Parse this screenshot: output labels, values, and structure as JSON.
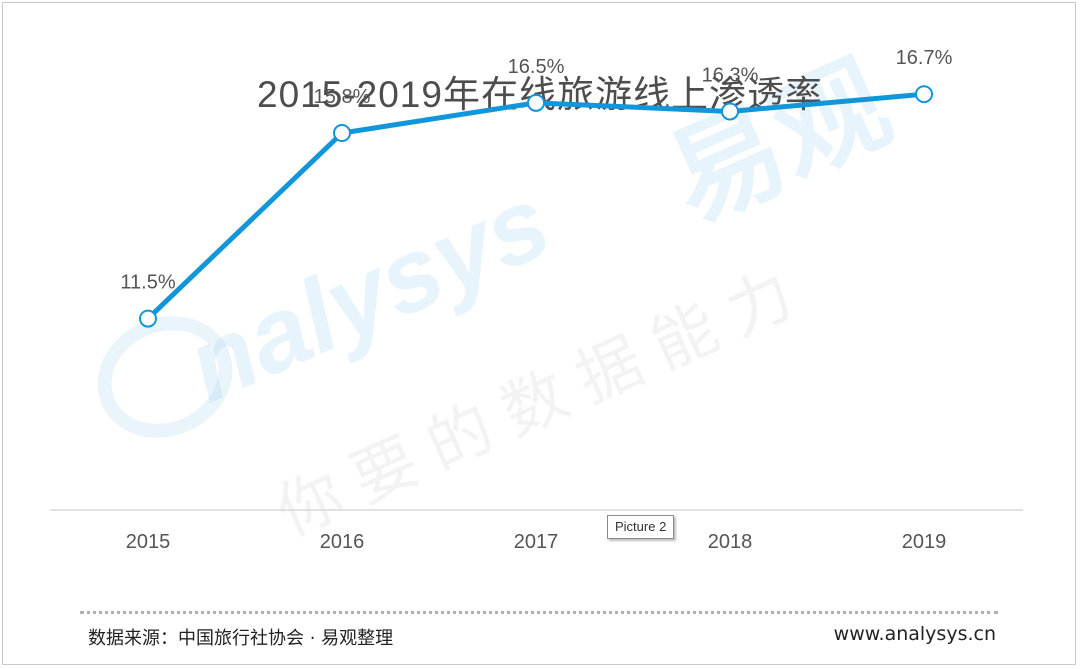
{
  "title": "2015-2019年在线旅游线上渗透率",
  "watermark": {
    "brand_text": "nalysys",
    "cn_brand": "易观",
    "slogan": "你要的数据能力"
  },
  "tooltip": "Picture 2",
  "footer": {
    "source": "数据来源：中国旅行社协会 · 易观整理",
    "site": "www.analysys.cn"
  },
  "colors": {
    "line": "#1296db",
    "title": "#4d4d4d",
    "axis": "#d9d9d9"
  },
  "chart_data": {
    "type": "line",
    "title": "2015-2019年在线旅游线上渗透率",
    "xlabel": "",
    "ylabel": "",
    "categories": [
      "2015",
      "2016",
      "2017",
      "2018",
      "2019"
    ],
    "series": [
      {
        "values": [
          11.5,
          15.8,
          16.5,
          16.3,
          16.7
        ],
        "labels": [
          "11.5%",
          "15.8%",
          "16.5%",
          "16.3%",
          "16.7%"
        ]
      }
    ],
    "ylim": [
      0,
      18
    ],
    "grid": false,
    "legend": "none"
  }
}
